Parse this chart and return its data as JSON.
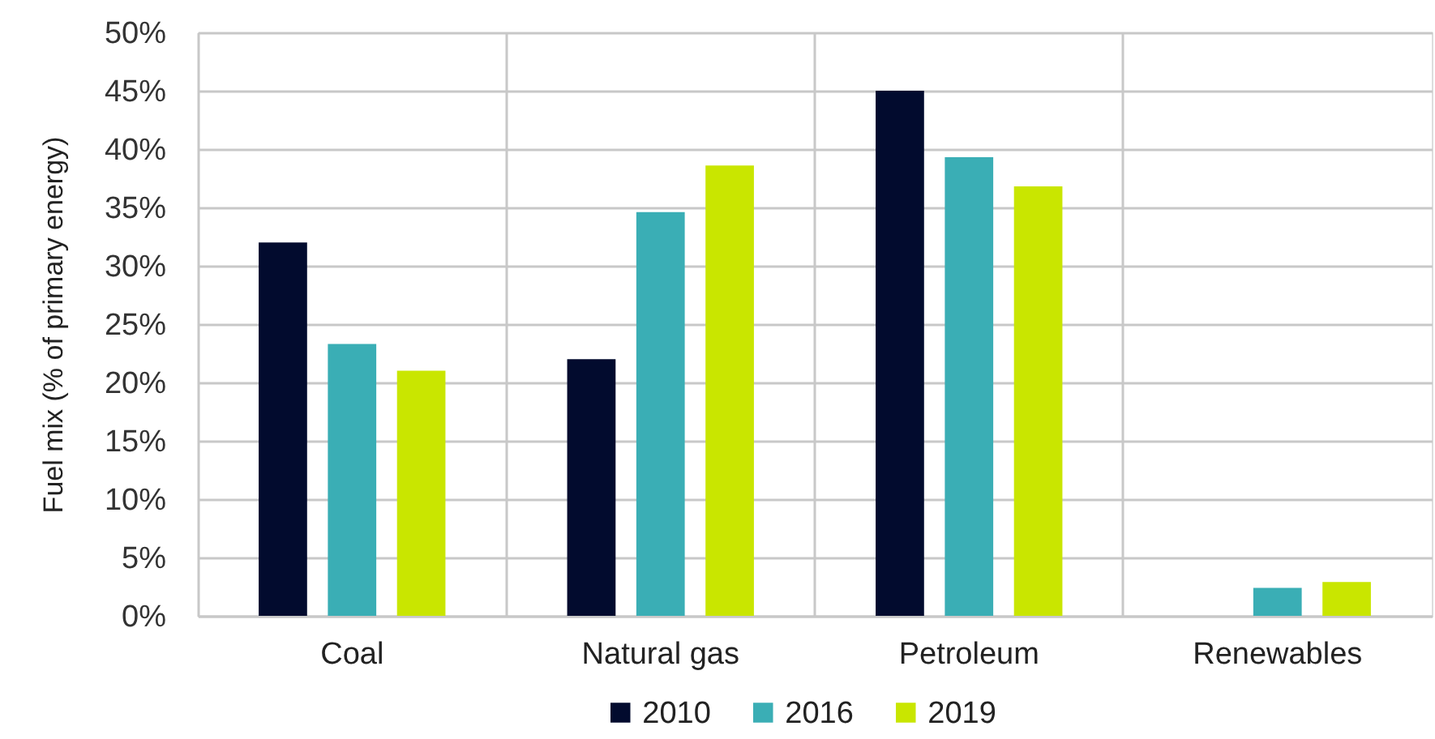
{
  "chart_data": {
    "type": "bar",
    "ylabel": "Fuel mix (% of primary energy)",
    "categories": [
      "Coal",
      "Natural gas",
      "Petroleum",
      "Renewables"
    ],
    "series": [
      {
        "name": "2010",
        "color": "#020b2e",
        "values": [
          32,
          22,
          45,
          null
        ]
      },
      {
        "name": "2016",
        "color": "#3aaeb5",
        "values": [
          23.3,
          34.6,
          39.3,
          2.4
        ]
      },
      {
        "name": "2019",
        "color": "#c9e600",
        "values": [
          21,
          38.6,
          36.8,
          2.9
        ]
      }
    ],
    "ylim": [
      0,
      50
    ],
    "yticks": [
      {
        "value": 0,
        "label": "0%"
      },
      {
        "value": 5,
        "label": "5%"
      },
      {
        "value": 10,
        "label": "10%"
      },
      {
        "value": 15,
        "label": "15%"
      },
      {
        "value": 20,
        "label": "20%"
      },
      {
        "value": 25,
        "label": "25%"
      },
      {
        "value": 30,
        "label": "30%"
      },
      {
        "value": 35,
        "label": "35%"
      },
      {
        "value": 40,
        "label": "40%"
      },
      {
        "value": 45,
        "label": "45%"
      },
      {
        "value": 50,
        "label": "50%"
      }
    ],
    "grid": true,
    "legend": "bottom"
  }
}
